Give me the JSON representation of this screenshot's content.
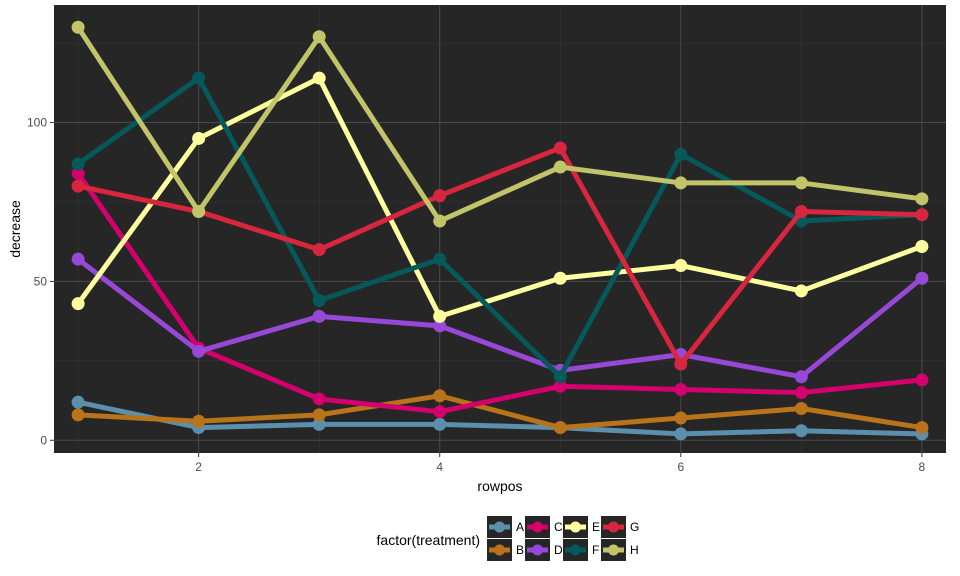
{
  "chart_data": {
    "type": "line",
    "xlabel": "rowpos",
    "ylabel": "decrease",
    "xlim": [
      0.8,
      8.2
    ],
    "ylim": [
      -4,
      137
    ],
    "x_ticks": [
      2,
      4,
      6,
      8
    ],
    "y_ticks": [
      0,
      50,
      100
    ],
    "x": [
      1,
      2,
      3,
      4,
      5,
      6,
      7,
      8
    ],
    "grid": true,
    "legend_title": "factor(treatment)",
    "legend_position": "bottom",
    "series": [
      {
        "name": "A",
        "color": "#5b8fab",
        "values": [
          12,
          4,
          5,
          5,
          4,
          2,
          3,
          2
        ]
      },
      {
        "name": "B",
        "color": "#b8731b",
        "values": [
          8,
          6,
          8,
          14,
          4,
          7,
          10,
          4
        ]
      },
      {
        "name": "C",
        "color": "#d4006e",
        "values": [
          84,
          29,
          13,
          9,
          17,
          16,
          15,
          19
        ]
      },
      {
        "name": "D",
        "color": "#9748d6",
        "values": [
          57,
          28,
          39,
          36,
          22,
          27,
          20,
          51
        ]
      },
      {
        "name": "E",
        "color": "#ffffa0",
        "values": [
          43,
          95,
          114,
          39,
          51,
          55,
          47,
          61
        ]
      },
      {
        "name": "F",
        "color": "#05595a",
        "values": [
          87,
          114,
          44,
          57,
          20,
          90,
          69,
          71
        ]
      },
      {
        "name": "G",
        "color": "#d7263d",
        "values": [
          80,
          72,
          60,
          77,
          92,
          24,
          72,
          71
        ]
      },
      {
        "name": "H",
        "color": "#c2c46a",
        "values": [
          130,
          72,
          127,
          69,
          86,
          81,
          81,
          76
        ]
      }
    ]
  },
  "colors": {
    "panel_background": "#262626",
    "grid_major": "#4a4a4a",
    "grid_minor": "#363636"
  }
}
